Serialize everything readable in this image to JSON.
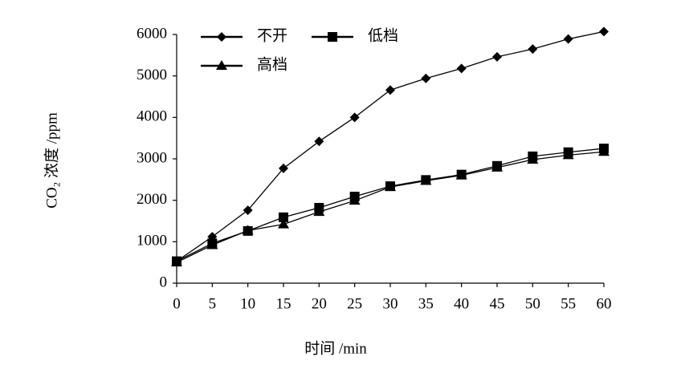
{
  "chart_data": {
    "type": "line",
    "x_label": "时间 /min",
    "y_label": "CO₂ 浓度 /ppm",
    "x": [
      0,
      5,
      10,
      15,
      20,
      25,
      30,
      35,
      40,
      45,
      50,
      55,
      60
    ],
    "series": [
      {
        "name": "不开",
        "color": "#000000",
        "marker": "diamond",
        "values": [
          530,
          1120,
          1760,
          2770,
          3420,
          4000,
          4660,
          4940,
          5180,
          5460,
          5650,
          5890,
          6070
        ]
      },
      {
        "name": "低档",
        "color": "#000000",
        "marker": "square",
        "values": [
          530,
          960,
          1260,
          1590,
          1820,
          2090,
          2340,
          2490,
          2620,
          2830,
          3060,
          3160,
          3250
        ]
      },
      {
        "name": "高档",
        "color": "#000000",
        "marker": "triangle",
        "values": [
          500,
          920,
          1270,
          1420,
          1720,
          1990,
          2320,
          2470,
          2600,
          2790,
          2980,
          3090,
          3170
        ]
      }
    ],
    "xlim": [
      0,
      60
    ],
    "xticks": [
      0,
      5,
      10,
      15,
      20,
      25,
      30,
      35,
      40,
      45,
      50,
      55,
      60
    ],
    "ylim": [
      0,
      6000
    ],
    "yticks": [
      0,
      1000,
      2000,
      3000,
      4000,
      5000,
      6000
    ],
    "grid": false,
    "legend": "top-left"
  }
}
